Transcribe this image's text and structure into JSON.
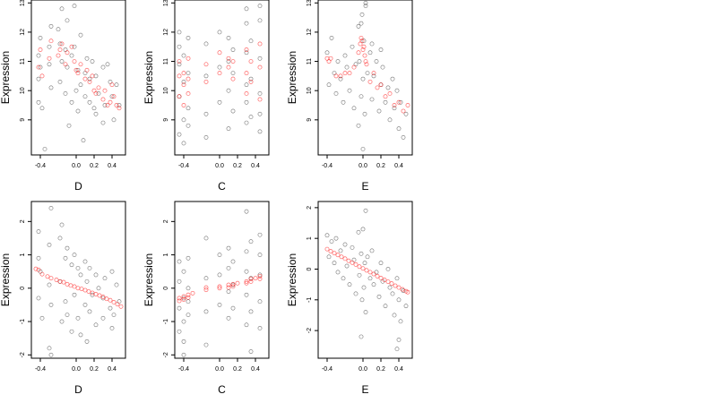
{
  "colors": {
    "observed": "#000000",
    "fitted": "#ff0000",
    "background": "#ffffff"
  },
  "chart_data": [
    {
      "type": "scatter",
      "xlabel": "D",
      "ylabel": "Expression",
      "xlim": [
        -0.5,
        0.55
      ],
      "ylim": [
        7.8,
        13.1
      ],
      "xticks": [
        -0.4,
        0.0,
        0.2,
        0.4
      ],
      "xtick_labels": [
        "-0.4",
        "0.0",
        "0.2",
        "0.4"
      ],
      "yticks": [
        9,
        10,
        11,
        12,
        13
      ],
      "ytick_labels": [
        "9",
        "10",
        "11",
        "12",
        "13"
      ],
      "series": [
        {
          "color": "observed",
          "x": [
            -0.42,
            -0.42,
            -0.42,
            -0.4,
            -0.4,
            -0.38,
            -0.3,
            -0.3,
            -0.28,
            -0.28,
            -0.18,
            -0.18,
            -0.16,
            -0.16,
            -0.12,
            -0.12,
            -0.1,
            -0.1,
            -0.05,
            -0.05,
            -0.02,
            -0.02,
            0.02,
            0.02,
            0.05,
            0.05,
            0.1,
            0.1,
            0.12,
            0.15,
            0.15,
            0.18,
            0.22,
            0.22,
            0.25,
            0.3,
            0.3,
            0.32,
            0.38,
            0.4,
            0.42,
            0.45,
            0.48,
            -0.2,
            -0.08,
            0.08,
            -0.35,
            0.0,
            0.2,
            0.35
          ],
          "y": [
            9.6,
            10.4,
            11.2,
            10.8,
            11.8,
            9.4,
            11.5,
            10.9,
            12.2,
            10.1,
            11.6,
            10.3,
            12.8,
            11.0,
            11.4,
            9.9,
            12.4,
            10.8,
            11.2,
            9.6,
            12.9,
            11.5,
            10.7,
            9.3,
            11.9,
            10.2,
            10.6,
            9.8,
            11.1,
            10.4,
            9.6,
            11.0,
            9.2,
            10.5,
            9.9,
            10.8,
            8.9,
            9.5,
            10.3,
            9.8,
            9.0,
            10.2,
            9.5,
            12.1,
            8.8,
            8.3,
            8.0,
            10.0,
            9.4,
            10.9
          ]
        },
        {
          "color": "fitted",
          "x": [
            -0.42,
            -0.4,
            -0.38,
            -0.3,
            -0.28,
            -0.18,
            -0.16,
            -0.12,
            -0.1,
            -0.05,
            -0.02,
            0.02,
            0.05,
            0.1,
            0.12,
            0.15,
            0.18,
            0.22,
            0.25,
            0.3,
            0.32,
            0.38,
            0.4,
            0.42,
            0.45,
            0.48,
            -0.2,
            0.0,
            0.2,
            0.35
          ],
          "y": [
            10.8,
            11.4,
            10.5,
            11.1,
            11.7,
            11.4,
            11.6,
            10.9,
            11.3,
            11.5,
            11.0,
            10.6,
            10.9,
            10.4,
            10.7,
            10.3,
            10.5,
            9.9,
            10.1,
            9.7,
            10.0,
            9.6,
            10.2,
            9.8,
            9.5,
            9.4,
            11.2,
            10.7,
            10.0,
            9.5
          ]
        }
      ]
    },
    {
      "type": "scatter",
      "xlabel": "C",
      "ylabel": "Expression",
      "xlim": [
        -0.5,
        0.55
      ],
      "ylim": [
        7.8,
        13.1
      ],
      "xticks": [
        -0.4,
        0.0,
        0.2,
        0.4
      ],
      "xtick_labels": [
        "-0.4",
        "0.0",
        "0.2",
        "0.4"
      ],
      "yticks": [
        9,
        10,
        11,
        12,
        13
      ],
      "ytick_labels": [
        "9",
        "10",
        "11",
        "12",
        "13"
      ],
      "series": [
        {
          "color": "observed",
          "x": [
            -0.45,
            -0.45,
            -0.45,
            -0.45,
            -0.4,
            -0.4,
            -0.4,
            -0.4,
            -0.35,
            -0.35,
            -0.35,
            -0.35,
            -0.15,
            -0.15,
            -0.15,
            0.0,
            0.0,
            0.0,
            0.1,
            0.1,
            0.1,
            0.1,
            0.15,
            0.15,
            0.15,
            0.3,
            0.3,
            0.3,
            0.3,
            0.3,
            0.35,
            0.35,
            0.35,
            0.45,
            0.45,
            0.45,
            0.45,
            0.45,
            -0.45,
            0.3,
            0.45,
            -0.15
          ],
          "y": [
            8.5,
            9.8,
            10.9,
            11.5,
            9.0,
            10.3,
            11.2,
            8.2,
            9.4,
            10.6,
            11.8,
            8.8,
            9.2,
            10.5,
            11.6,
            9.6,
            10.8,
            12.0,
            8.7,
            10.0,
            11.0,
            11.8,
            9.3,
            10.6,
            11.4,
            8.9,
            10.2,
            11.3,
            12.3,
            9.6,
            9.1,
            10.4,
            11.7,
            8.6,
            9.9,
            11.1,
            12.4,
            12.9,
            12.0,
            12.8,
            9.2,
            8.4
          ]
        },
        {
          "color": "fitted",
          "x": [
            -0.45,
            -0.45,
            -0.45,
            -0.4,
            -0.4,
            -0.4,
            -0.35,
            -0.35,
            -0.35,
            -0.15,
            -0.15,
            0.0,
            0.0,
            0.1,
            0.1,
            0.15,
            0.15,
            0.3,
            0.3,
            0.3,
            0.35,
            0.35,
            0.45,
            0.45,
            0.45
          ],
          "y": [
            9.8,
            10.5,
            11.0,
            10.2,
            10.6,
            9.5,
            10.4,
            11.1,
            9.9,
            10.3,
            10.9,
            10.6,
            11.3,
            10.8,
            11.1,
            11.0,
            10.4,
            10.6,
            11.4,
            9.9,
            11.0,
            10.3,
            11.6,
            10.8,
            9.7
          ]
        }
      ]
    },
    {
      "type": "scatter",
      "xlabel": "E",
      "ylabel": "Expression",
      "xlim": [
        -0.5,
        0.55
      ],
      "ylim": [
        7.8,
        13.1
      ],
      "xticks": [
        -0.4,
        0.0,
        0.2,
        0.4
      ],
      "xtick_labels": [
        "-0.4",
        "0.0",
        "0.2",
        "0.4"
      ],
      "yticks": [
        9,
        10,
        11,
        12,
        13
      ],
      "ytick_labels": [
        "9",
        "10",
        "11",
        "12",
        "13"
      ],
      "series": [
        {
          "color": "observed",
          "x": [
            -0.4,
            -0.38,
            -0.35,
            -0.32,
            -0.3,
            -0.28,
            -0.25,
            -0.22,
            -0.2,
            -0.18,
            -0.15,
            -0.12,
            -0.1,
            -0.08,
            -0.05,
            -0.04,
            -0.02,
            -0.01,
            0.0,
            0.01,
            0.02,
            0.03,
            0.05,
            0.08,
            0.1,
            0.12,
            0.15,
            0.18,
            0.2,
            0.22,
            0.25,
            0.28,
            0.3,
            0.33,
            0.35,
            0.38,
            0.4,
            0.42,
            0.45,
            0.48,
            -0.05,
            0.0,
            0.03,
            -0.02,
            0.1,
            0.2
          ],
          "y": [
            11.3,
            10.2,
            11.8,
            10.6,
            9.9,
            11.0,
            10.4,
            9.6,
            11.2,
            10.8,
            10.0,
            11.5,
            9.4,
            10.9,
            12.2,
            11.0,
            9.8,
            12.6,
            10.4,
            11.7,
            9.2,
            12.9,
            10.6,
            11.3,
            9.7,
            10.5,
            11.0,
            9.3,
            10.2,
            10.8,
            9.6,
            10.1,
            9.0,
            10.4,
            9.4,
            10.0,
            8.7,
            9.6,
            8.4,
            9.2,
            8.8,
            8.0,
            13.0,
            12.3,
            11.6,
            11.4
          ]
        },
        {
          "color": "fitted",
          "x": [
            -0.4,
            -0.38,
            -0.36,
            -0.3,
            -0.25,
            -0.2,
            -0.15,
            -0.1,
            -0.05,
            -0.03,
            -0.01,
            0.0,
            0.01,
            0.02,
            0.04,
            0.08,
            0.12,
            0.16,
            0.2,
            0.25,
            0.3,
            0.35,
            0.4,
            0.45,
            0.5,
            -0.02,
            0.03
          ],
          "y": [
            11.1,
            11.0,
            11.1,
            10.5,
            10.5,
            10.6,
            10.6,
            10.8,
            11.3,
            11.6,
            11.7,
            11.4,
            11.5,
            11.2,
            10.9,
            10.3,
            10.6,
            10.1,
            10.2,
            9.8,
            9.9,
            9.5,
            9.6,
            9.3,
            9.5,
            11.8,
            11.0
          ]
        }
      ]
    },
    {
      "type": "scatter",
      "xlabel": "D",
      "ylabel": "Expression",
      "xlim": [
        -0.5,
        0.55
      ],
      "ylim": [
        -2.1,
        2.6
      ],
      "xticks": [
        -0.4,
        0.0,
        0.2,
        0.4
      ],
      "xtick_labels": [
        "-0.4",
        "0.0",
        "0.2",
        "0.4"
      ],
      "yticks": [
        -2,
        -1,
        0,
        1,
        2
      ],
      "ytick_labels": [
        "-2",
        "-1",
        "0",
        "1",
        "2"
      ],
      "series": [
        {
          "color": "observed",
          "x": [
            -0.42,
            -0.42,
            -0.42,
            -0.4,
            -0.38,
            -0.3,
            -0.3,
            -0.28,
            -0.28,
            -0.18,
            -0.18,
            -0.16,
            -0.16,
            -0.12,
            -0.12,
            -0.1,
            -0.1,
            -0.05,
            -0.05,
            -0.02,
            -0.02,
            0.02,
            0.02,
            0.05,
            0.05,
            0.1,
            0.1,
            0.12,
            0.15,
            0.15,
            0.18,
            0.22,
            0.22,
            0.25,
            0.3,
            0.3,
            0.32,
            0.38,
            0.4,
            0.42,
            0.45,
            0.48,
            -0.28,
            -0.3,
            0.12,
            0.4
          ],
          "y": [
            1.7,
            0.9,
            -0.3,
            0.5,
            -0.9,
            1.3,
            0.1,
            2.4,
            -0.5,
            1.5,
            0.2,
            1.9,
            -1.0,
            0.9,
            -0.4,
            1.2,
            -0.8,
            0.7,
            -1.3,
            1.0,
            -0.2,
            0.6,
            -0.9,
            0.4,
            -1.4,
            0.8,
            -0.5,
            0.2,
            0.6,
            -0.7,
            -0.2,
            0.4,
            -1.1,
            0.0,
            -0.3,
            -0.9,
            0.3,
            -0.6,
            0.5,
            -0.8,
            0.1,
            -0.4,
            -2.0,
            -1.8,
            -1.6,
            -1.2
          ]
        },
        {
          "color": "fitted",
          "x": [
            -0.45,
            -0.42,
            -0.38,
            -0.32,
            -0.28,
            -0.22,
            -0.18,
            -0.14,
            -0.1,
            -0.06,
            -0.02,
            0.02,
            0.06,
            0.1,
            0.14,
            0.18,
            0.22,
            0.26,
            0.3,
            0.34,
            0.38,
            0.42,
            0.46,
            0.5
          ],
          "y": [
            0.58,
            0.55,
            0.42,
            0.35,
            0.3,
            0.25,
            0.2,
            0.18,
            0.12,
            0.08,
            0.05,
            0.0,
            -0.02,
            -0.06,
            -0.1,
            -0.14,
            -0.18,
            -0.22,
            -0.26,
            -0.32,
            -0.36,
            -0.42,
            -0.48,
            -0.55
          ]
        }
      ]
    },
    {
      "type": "scatter",
      "xlabel": "C",
      "ylabel": "Expression",
      "xlim": [
        -0.5,
        0.55
      ],
      "ylim": [
        -2.1,
        2.6
      ],
      "xticks": [
        -0.4,
        0.0,
        0.2,
        0.4
      ],
      "xtick_labels": [
        "-0.4",
        "0.0",
        "0.2",
        "0.4"
      ],
      "yticks": [
        -2,
        -1,
        0,
        1,
        2
      ],
      "ytick_labels": [
        "-2",
        "-1",
        "0",
        "1",
        "2"
      ],
      "series": [
        {
          "color": "observed",
          "x": [
            -0.45,
            -0.45,
            -0.45,
            -0.45,
            -0.4,
            -0.4,
            -0.4,
            -0.4,
            -0.35,
            -0.35,
            -0.35,
            -0.35,
            -0.15,
            -0.15,
            -0.15,
            0.0,
            0.0,
            0.0,
            0.1,
            0.1,
            0.1,
            0.1,
            0.15,
            0.15,
            0.15,
            0.3,
            0.3,
            0.3,
            0.3,
            0.3,
            0.35,
            0.35,
            0.35,
            0.45,
            0.45,
            0.45,
            0.45,
            0.45,
            0.35,
            -0.15,
            -0.4
          ],
          "y": [
            -1.3,
            -0.6,
            0.2,
            0.8,
            -1.0,
            -0.3,
            0.5,
            -1.6,
            -0.8,
            0.0,
            0.9,
            -0.4,
            -0.7,
            0.3,
            1.5,
            -0.5,
            0.4,
            1.0,
            -0.9,
            -0.1,
            0.6,
            1.2,
            -0.6,
            0.1,
            0.8,
            -1.1,
            -0.2,
            0.5,
            1.1,
            2.3,
            -0.7,
            0.3,
            1.4,
            -1.2,
            -0.4,
            0.4,
            1.0,
            1.6,
            -1.9,
            -1.7,
            -2.0
          ]
        },
        {
          "color": "fitted",
          "x": [
            -0.45,
            -0.45,
            -0.4,
            -0.4,
            -0.35,
            -0.35,
            -0.3,
            -0.15,
            -0.15,
            0.0,
            0.0,
            0.1,
            0.1,
            0.15,
            0.15,
            0.2,
            0.3,
            0.3,
            0.35,
            0.35,
            0.4,
            0.45,
            0.45
          ],
          "y": [
            -0.3,
            -0.38,
            -0.25,
            -0.34,
            -0.2,
            -0.28,
            -0.15,
            -0.05,
            0.02,
            0.0,
            0.05,
            0.1,
            0.02,
            0.12,
            0.05,
            0.15,
            0.2,
            0.15,
            0.28,
            0.2,
            0.3,
            0.36,
            0.28
          ]
        }
      ]
    },
    {
      "type": "scatter",
      "xlabel": "E",
      "ylabel": "Expression",
      "xlim": [
        -0.5,
        0.55
      ],
      "ylim": [
        -2.9,
        2.2
      ],
      "xticks": [
        -0.4,
        0.0,
        0.2,
        0.4
      ],
      "xtick_labels": [
        "-0.4",
        "0.0",
        "0.2",
        "0.4"
      ],
      "yticks": [
        -2,
        -1,
        0,
        1,
        2
      ],
      "ytick_labels": [
        "-2",
        "-1",
        "0",
        "1",
        "2"
      ],
      "series": [
        {
          "color": "observed",
          "x": [
            -0.4,
            -0.38,
            -0.35,
            -0.32,
            -0.3,
            -0.28,
            -0.25,
            -0.22,
            -0.2,
            -0.18,
            -0.15,
            -0.12,
            -0.1,
            -0.08,
            -0.05,
            -0.04,
            -0.02,
            -0.01,
            0.0,
            0.01,
            0.02,
            0.03,
            0.05,
            0.08,
            0.1,
            0.12,
            0.15,
            0.18,
            0.2,
            0.22,
            0.25,
            0.28,
            0.3,
            0.33,
            0.35,
            0.38,
            0.4,
            0.42,
            0.45,
            0.48,
            -0.02,
            0.03,
            0.38,
            0.4
          ],
          "y": [
            1.1,
            0.4,
            0.9,
            0.2,
            1.0,
            -0.1,
            0.6,
            -0.3,
            0.8,
            0.1,
            -0.5,
            0.7,
            0.3,
            -0.8,
            1.2,
            -0.2,
            0.5,
            -1.0,
            1.3,
            -0.6,
            0.2,
            -1.4,
            0.4,
            -0.3,
            0.6,
            -0.5,
            -0.1,
            -0.9,
            0.2,
            -0.4,
            -1.2,
            0.0,
            -0.6,
            -0.8,
            -1.5,
            -0.3,
            -1.0,
            -1.7,
            -0.7,
            -1.2,
            -2.2,
            1.9,
            -2.6,
            -2.3
          ]
        },
        {
          "color": "fitted",
          "x": [
            -0.4,
            -0.36,
            -0.32,
            -0.28,
            -0.24,
            -0.2,
            -0.16,
            -0.12,
            -0.08,
            -0.04,
            0.0,
            0.04,
            0.08,
            0.12,
            0.16,
            0.2,
            0.24,
            0.28,
            0.32,
            0.36,
            0.4,
            0.44,
            0.48,
            0.5
          ],
          "y": [
            0.65,
            0.58,
            0.52,
            0.46,
            0.4,
            0.34,
            0.27,
            0.21,
            0.15,
            0.08,
            0.02,
            -0.04,
            -0.1,
            -0.16,
            -0.23,
            -0.29,
            -0.35,
            -0.41,
            -0.47,
            -0.54,
            -0.6,
            -0.66,
            -0.72,
            -0.75
          ]
        }
      ]
    }
  ]
}
